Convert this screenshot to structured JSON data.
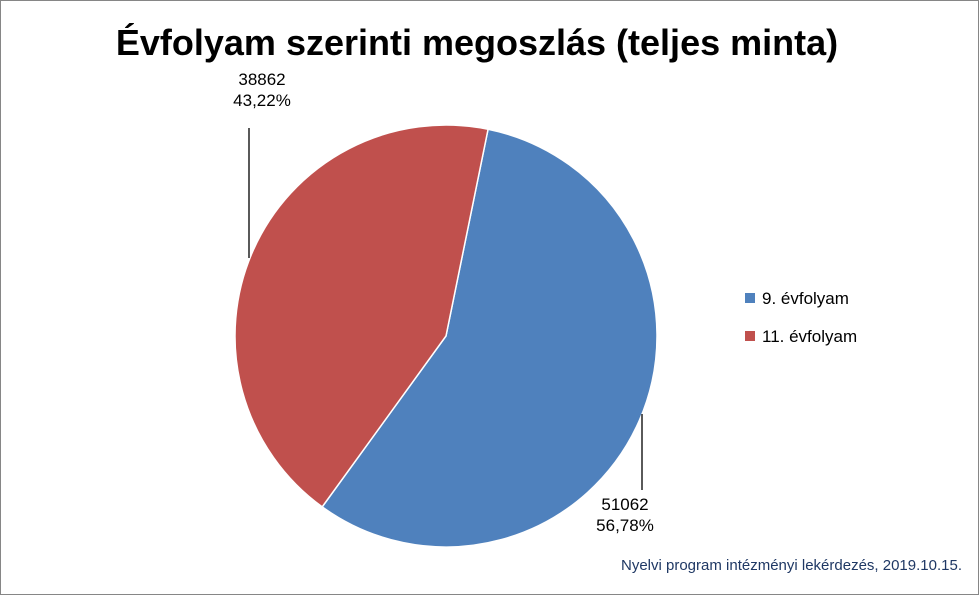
{
  "chart_data": {
    "type": "pie",
    "title": "Évfolyam szerinti megoszlás (teljes minta)",
    "categories": [
      "9. évfolyam",
      "11. évfolyam"
    ],
    "values": [
      51062,
      38862
    ],
    "percent_labels": [
      "56,78%",
      "43,22%"
    ],
    "colors": [
      "#4F81BD",
      "#C0504D"
    ],
    "legend_position": "right",
    "start_angle_deg": 11.5,
    "direction": "clockwise"
  },
  "source_note": "Nyelvi program intézményi lekérdezés, 2019.10.15."
}
